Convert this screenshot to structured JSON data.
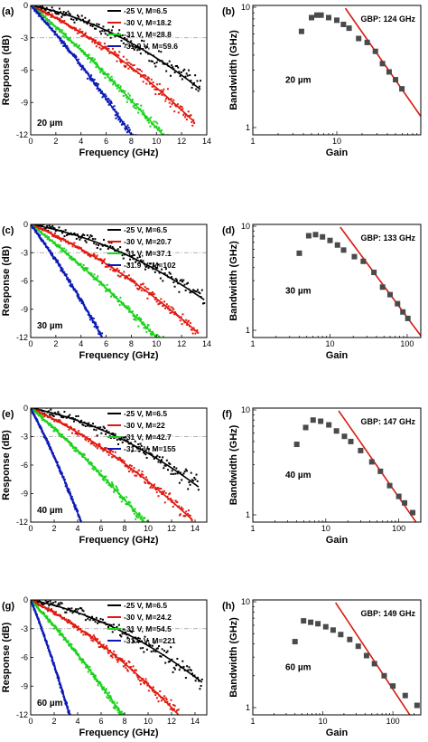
{
  "colors": {
    "black": "#000000",
    "red": "#e0190f",
    "green": "#19d219",
    "blue": "#0b1ab5",
    "grey": "#4a4a4a",
    "fit": "#d81b10",
    "ref": "#9a9a9a"
  },
  "chart_data": [
    {
      "panel": "(a)",
      "type": "line",
      "xlabel": "Frequency (GHz)",
      "ylabel": "Response (dB)",
      "xlim": [
        0,
        14
      ],
      "ylim": [
        -12,
        0
      ],
      "xticks": [
        0,
        2,
        4,
        6,
        8,
        10,
        12,
        14
      ],
      "yticks": [
        0,
        -3,
        -6,
        -9,
        -12
      ],
      "reference_line_y": -3,
      "annotation": "20 µm",
      "series": [
        {
          "name": "-25 V, M=6.5",
          "color": "#000000",
          "end_x": 13.5,
          "end_y": -7.8
        },
        {
          "name": "-30 V, M=18.2",
          "color": "#e0190f",
          "end_x": 13.0,
          "end_y": -10.8
        },
        {
          "name": "-31 V, M=28.8",
          "color": "#19d219",
          "end_x": 10.5,
          "end_y": -12
        },
        {
          "name": "-31.9 V, M=59.6",
          "color": "#0b1ab5",
          "end_x": 8.0,
          "end_y": -12
        }
      ]
    },
    {
      "panel": "(b)",
      "type": "scatter",
      "xlabel": "Gain",
      "ylabel": "Bandwidth (GHz)",
      "xscale": "log",
      "yscale": "log",
      "xlim": [
        1,
        100
      ],
      "ylim": [
        1,
        10
      ],
      "xticks": [
        1,
        10
      ],
      "yticks": [
        1,
        10
      ],
      "annotation": "20 µm",
      "gbp_label": "GBP: 124 GHz",
      "fit_gbp": 124,
      "points": [
        [
          3.8,
          6.3
        ],
        [
          5.0,
          8.2
        ],
        [
          5.8,
          8.6
        ],
        [
          6.5,
          8.6
        ],
        [
          8.0,
          8.2
        ],
        [
          10.0,
          7.8
        ],
        [
          12.0,
          7.2
        ],
        [
          14.0,
          6.7
        ],
        [
          18.2,
          5.5
        ],
        [
          23.0,
          5.1
        ],
        [
          28.8,
          4.3
        ],
        [
          35.0,
          3.4
        ],
        [
          42.0,
          2.9
        ],
        [
          50.0,
          2.5
        ],
        [
          59.6,
          2.1
        ]
      ]
    },
    {
      "panel": "(c)",
      "type": "line",
      "xlabel": "Frequency (GHz)",
      "ylabel": "Response (dB)",
      "xlim": [
        0,
        14
      ],
      "ylim": [
        -12,
        0
      ],
      "xticks": [
        0,
        2,
        4,
        6,
        8,
        10,
        12,
        14
      ],
      "yticks": [
        0,
        -3,
        -6,
        -9,
        -12
      ],
      "reference_line_y": -3,
      "annotation": "30 µm",
      "series": [
        {
          "name": "-25 V, M=6.5",
          "color": "#000000",
          "end_x": 13.8,
          "end_y": -8.0
        },
        {
          "name": "-30 V, M=20.7",
          "color": "#e0190f",
          "end_x": 13.3,
          "end_y": -11.5
        },
        {
          "name": "-31 V, M=37.1",
          "color": "#19d219",
          "end_x": 10.0,
          "end_y": -12
        },
        {
          "name": "-31.9 V, M=102",
          "color": "#0b1ab5",
          "end_x": 5.7,
          "end_y": -12
        }
      ]
    },
    {
      "panel": "(d)",
      "type": "scatter",
      "xlabel": "Gain",
      "ylabel": "Bandwidth (GHz)",
      "xscale": "log",
      "yscale": "log",
      "xlim": [
        1,
        150
      ],
      "ylim": [
        1,
        10
      ],
      "xticks": [
        1,
        10,
        100
      ],
      "yticks": [
        1,
        10
      ],
      "annotation": "30 µm",
      "gbp_label": "GBP: 133 GHz",
      "fit_gbp": 133,
      "points": [
        [
          4.0,
          5.5
        ],
        [
          5.3,
          8.1
        ],
        [
          6.5,
          8.3
        ],
        [
          8.0,
          7.9
        ],
        [
          10.0,
          7.3
        ],
        [
          12.5,
          6.6
        ],
        [
          15.0,
          5.9
        ],
        [
          20.7,
          5.1
        ],
        [
          27.0,
          4.6
        ],
        [
          37.1,
          3.6
        ],
        [
          48.0,
          2.6
        ],
        [
          60.0,
          2.2
        ],
        [
          75.0,
          1.8
        ],
        [
          88.0,
          1.5
        ],
        [
          102.0,
          1.3
        ]
      ]
    },
    {
      "panel": "(e)",
      "type": "line",
      "xlabel": "Frequency (GHz)",
      "ylabel": "Response (dB)",
      "xlim": [
        0,
        15
      ],
      "ylim": [
        -12,
        0
      ],
      "xticks": [
        0,
        2,
        4,
        6,
        8,
        10,
        12,
        14
      ],
      "yticks": [
        0,
        -3,
        -6,
        -9,
        -12
      ],
      "reference_line_y": -3,
      "annotation": "40 µm",
      "series": [
        {
          "name": "-25 V, M=6.5",
          "color": "#000000",
          "end_x": 14.3,
          "end_y": -8.3
        },
        {
          "name": "-30 V, M=22",
          "color": "#e0190f",
          "end_x": 13.8,
          "end_y": -11.8
        },
        {
          "name": "-31 V, M=42.7",
          "color": "#19d219",
          "end_x": 9.7,
          "end_y": -12
        },
        {
          "name": "-31.9 V, M=155",
          "color": "#0b1ab5",
          "end_x": 4.3,
          "end_y": -12
        }
      ]
    },
    {
      "panel": "(f)",
      "type": "scatter",
      "xlabel": "Gain",
      "ylabel": "Bandwidth (GHz)",
      "xscale": "log",
      "yscale": "log",
      "xlim": [
        1,
        200
      ],
      "ylim": [
        1,
        10
      ],
      "xticks": [
        1,
        10,
        100
      ],
      "yticks": [
        1,
        10
      ],
      "annotation": "40 µm",
      "gbp_label": "GBP: 147 GHz",
      "fit_gbp": 147,
      "points": [
        [
          4.0,
          4.7
        ],
        [
          5.3,
          6.8
        ],
        [
          6.7,
          8.0
        ],
        [
          8.5,
          7.8
        ],
        [
          11.0,
          7.2
        ],
        [
          14.0,
          6.3
        ],
        [
          18.0,
          5.6
        ],
        [
          22.0,
          5.0
        ],
        [
          30.0,
          4.1
        ],
        [
          42.7,
          3.2
        ],
        [
          56.0,
          2.6
        ],
        [
          75.0,
          1.9
        ],
        [
          100.0,
          1.5
        ],
        [
          120.0,
          1.3
        ],
        [
          155.0,
          1.05
        ]
      ]
    },
    {
      "panel": "(g)",
      "type": "line",
      "xlabel": "Frequency (GHz)",
      "ylabel": "Response (dB)",
      "xlim": [
        0,
        15
      ],
      "ylim": [
        -12,
        0
      ],
      "xticks": [
        0,
        2,
        4,
        6,
        8,
        10,
        12,
        14
      ],
      "yticks": [
        0,
        -3,
        -6,
        -9,
        -12
      ],
      "reference_line_y": -3,
      "annotation": "60 µm",
      "series": [
        {
          "name": "-25 V, M=6.5",
          "color": "#000000",
          "end_x": 14.6,
          "end_y": -8.6
        },
        {
          "name": "-30 V, M=24.2",
          "color": "#e0190f",
          "end_x": 12.6,
          "end_y": -12
        },
        {
          "name": "-31 V, M=54.5",
          "color": "#19d219",
          "end_x": 7.8,
          "end_y": -12
        },
        {
          "name": "-31.7 V, M=221",
          "color": "#0b1ab5",
          "end_x": 3.3,
          "end_y": -12
        }
      ]
    },
    {
      "panel": "(h)",
      "type": "scatter",
      "xlabel": "Gain",
      "ylabel": "Bandwidth (GHz)",
      "xscale": "log",
      "yscale": "log",
      "xlim": [
        1,
        250
      ],
      "ylim": [
        1,
        10
      ],
      "xticks": [
        1,
        10,
        100
      ],
      "yticks": [
        1,
        10
      ],
      "annotation": "60 µm",
      "gbp_label": "GBP: 149 GHz",
      "fit_gbp": 149,
      "points": [
        [
          4.0,
          4.2
        ],
        [
          5.3,
          6.6
        ],
        [
          6.7,
          6.4
        ],
        [
          8.5,
          6.2
        ],
        [
          11.0,
          5.8
        ],
        [
          14.0,
          5.4
        ],
        [
          18.0,
          4.9
        ],
        [
          24.2,
          4.4
        ],
        [
          32.0,
          3.8
        ],
        [
          42.0,
          3.1
        ],
        [
          54.5,
          2.6
        ],
        [
          75.0,
          2.0
        ],
        [
          100.0,
          1.6
        ],
        [
          150.0,
          1.3
        ],
        [
          221.0,
          1.05
        ]
      ]
    }
  ]
}
